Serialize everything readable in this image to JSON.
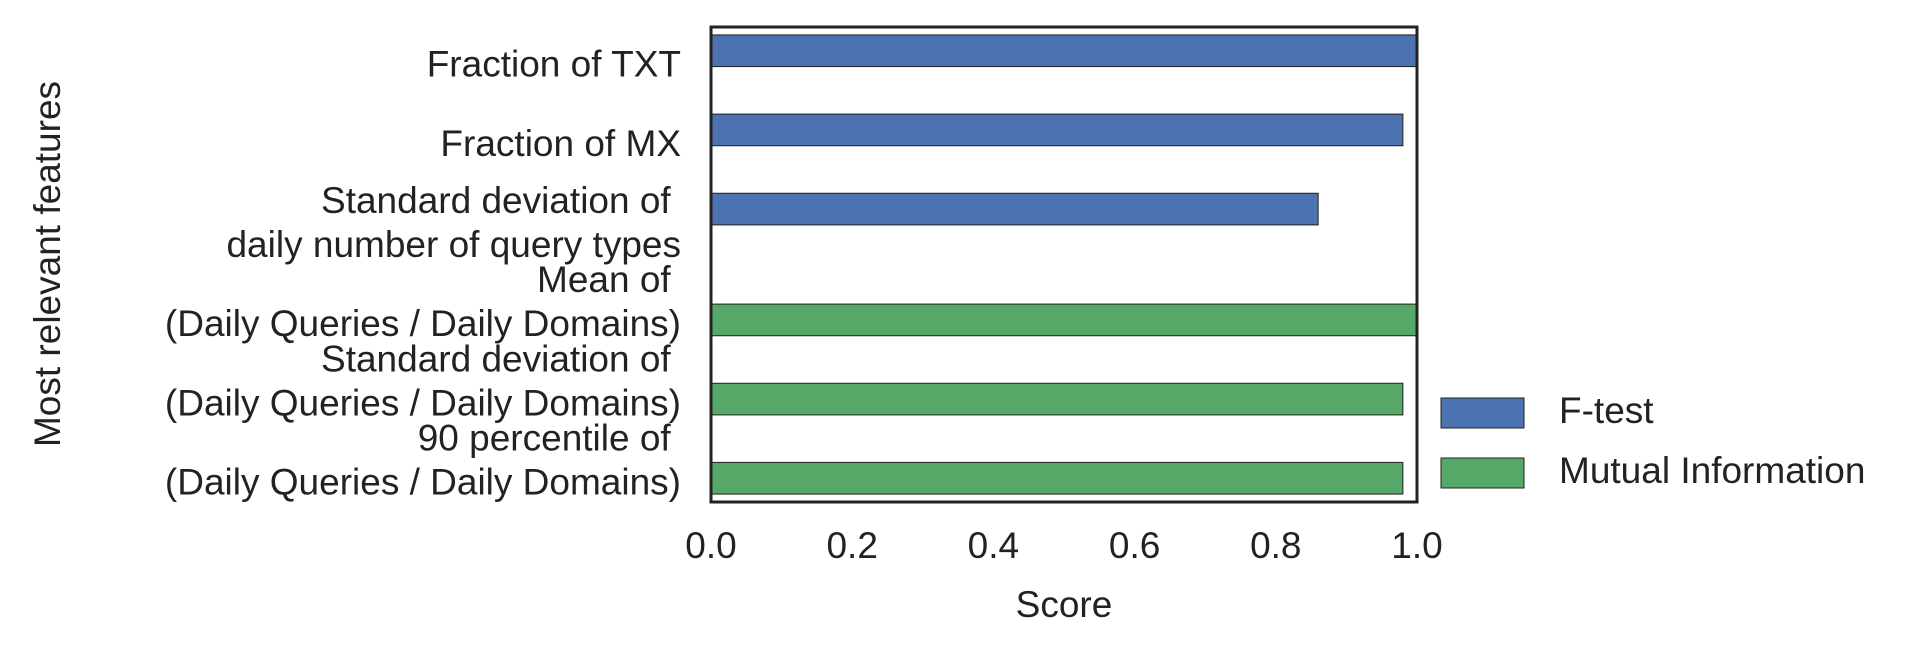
{
  "chart_data": {
    "type": "bar",
    "orientation": "horizontal",
    "x_label": "Score",
    "y_label": "Most relevant features",
    "categories": [
      [
        "Fraction of TXT"
      ],
      [
        "Fraction of MX"
      ],
      [
        "Standard deviation of ",
        "daily number of query types"
      ],
      [
        "Mean of ",
        "(Daily Queries / Daily Domains)"
      ],
      [
        "Standard deviation of ",
        "(Daily Queries / Daily Domains)"
      ],
      [
        "90 percentile of ",
        "(Daily Queries / Daily Domains)"
      ]
    ],
    "series": [
      {
        "name": "F-test",
        "color": "#4c72b0",
        "values": [
          1.0,
          0.98,
          0.86,
          null,
          null,
          null
        ]
      },
      {
        "name": "Mutual Information",
        "color": "#55a868",
        "values": [
          null,
          null,
          null,
          1.0,
          0.98,
          0.98
        ]
      }
    ],
    "xlim": [
      0,
      1
    ],
    "xticks": [
      {
        "value": 0,
        "label": "0.0"
      },
      {
        "value": 0.2,
        "label": "0.2"
      },
      {
        "value": 0.4,
        "label": "0.4"
      },
      {
        "value": 0.6,
        "label": "0.6"
      },
      {
        "value": 0.8,
        "label": "0.8"
      },
      {
        "value": 1,
        "label": "1.0"
      }
    ],
    "grid": false,
    "legend": "lower right outside"
  }
}
